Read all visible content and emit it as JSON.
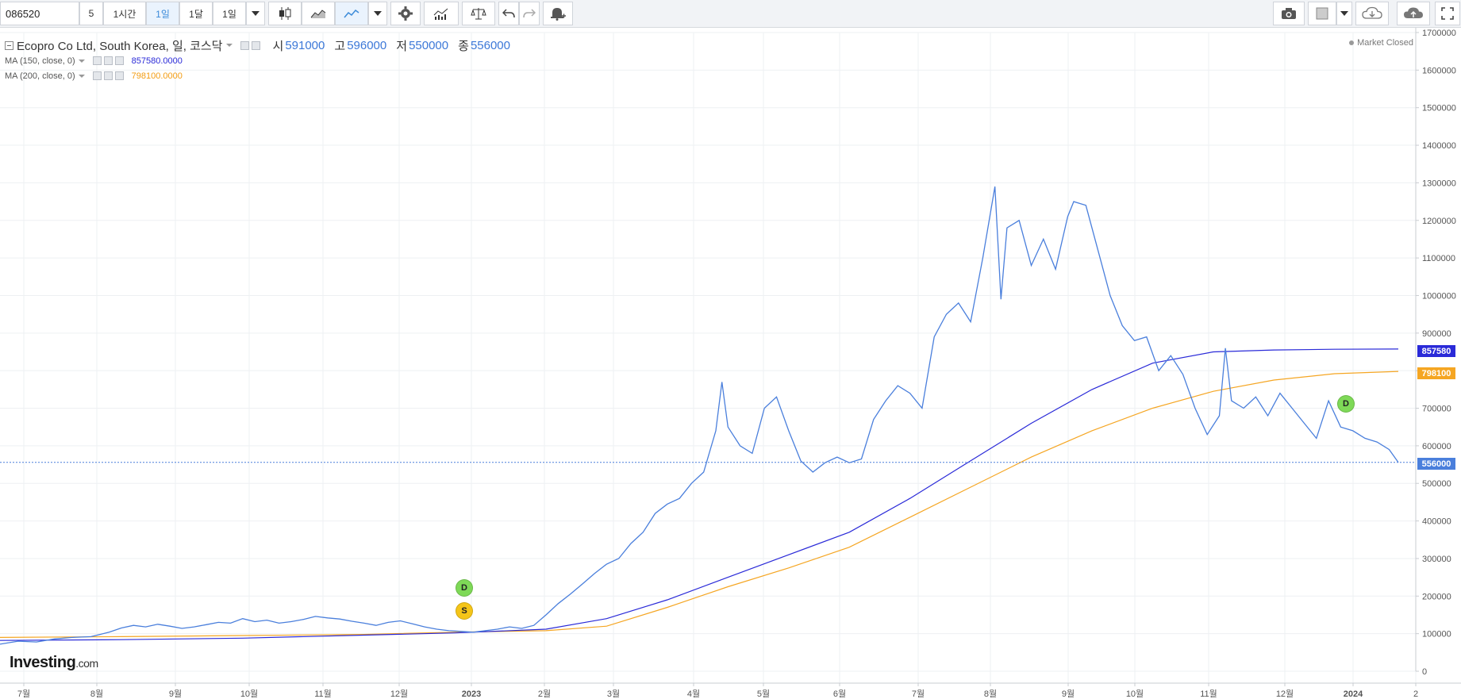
{
  "toolbar": {
    "symbol_value": "086520",
    "interval_buttons": [
      "5",
      "1시간",
      "1일",
      "1달",
      "1일"
    ],
    "active_interval_index": 2
  },
  "legend": {
    "title": "Ecopro Co Ltd, South Korea, 일, 코스닥",
    "open_label": "시",
    "open_value": "591000",
    "high_label": "고",
    "high_value": "596000",
    "low_label": "저",
    "low_value": "550000",
    "close_label": "종",
    "close_value": "556000",
    "ma1_label": "MA (150, close, 0)",
    "ma1_value": "857580.0000",
    "ma2_label": "MA (200, close, 0)",
    "ma2_value": "798100.0000"
  },
  "market_status": "Market Closed",
  "logo": {
    "name": "Investing",
    "suffix": ".com"
  },
  "price_tags": {
    "ma150": "857580",
    "ma200": "798100",
    "last": "556000"
  },
  "badges": {
    "d1": "D",
    "s1": "S",
    "d2": "D"
  },
  "colors": {
    "price_line": "#4a7fdc",
    "ma150": "#2a2ad8",
    "ma200": "#f5a623",
    "last_tag": "#4a7fdc",
    "grid": "#eef0f3",
    "badge_d": "#7ed957",
    "badge_s": "#f5c518"
  },
  "chart_data": {
    "type": "line",
    "y_axis_ticks": [
      "1700000",
      "1600000",
      "1500000",
      "1400000",
      "1300000",
      "1200000",
      "1100000",
      "1000000",
      "900000",
      "800000",
      "700000",
      "600000",
      "500000",
      "400000",
      "300000",
      "200000",
      "100000",
      "0"
    ],
    "ylim": [
      0,
      1700000
    ],
    "x_axis_ticks": [
      "7월",
      "8월",
      "9월",
      "10월",
      "11월",
      "12월",
      "2023",
      "2월",
      "3월",
      "4월",
      "5월",
      "6월",
      "7월",
      "8월",
      "9월",
      "10월",
      "11월",
      "12월",
      "2024",
      "2"
    ],
    "series": [
      {
        "name": "",
        "points": [
          [
            0,
            72000
          ],
          [
            6,
            80000
          ],
          [
            12,
            78000
          ],
          [
            18,
            86000
          ],
          [
            24,
            90000
          ],
          [
            30,
            92000
          ],
          [
            36,
            104000
          ],
          [
            40,
            115000
          ],
          [
            44,
            122000
          ],
          [
            48,
            118000
          ],
          [
            52,
            125000
          ],
          [
            56,
            120000
          ],
          [
            60,
            114000
          ],
          [
            64,
            118000
          ],
          [
            68,
            124000
          ],
          [
            72,
            130000
          ],
          [
            76,
            128000
          ],
          [
            80,
            140000
          ],
          [
            84,
            132000
          ],
          [
            88,
            136000
          ],
          [
            92,
            128000
          ],
          [
            96,
            132000
          ],
          [
            100,
            138000
          ],
          [
            104,
            146000
          ],
          [
            108,
            142000
          ],
          [
            112,
            139000
          ],
          [
            116,
            133000
          ],
          [
            120,
            128000
          ],
          [
            124,
            122000
          ],
          [
            128,
            130000
          ],
          [
            132,
            134000
          ],
          [
            136,
            126000
          ],
          [
            140,
            118000
          ],
          [
            144,
            112000
          ],
          [
            148,
            108000
          ],
          [
            152,
            106000
          ],
          [
            156,
            104000
          ],
          [
            160,
            108000
          ],
          [
            164,
            112000
          ],
          [
            168,
            118000
          ],
          [
            172,
            114000
          ],
          [
            176,
            122000
          ],
          [
            180,
            150000
          ],
          [
            184,
            180000
          ],
          [
            188,
            205000
          ],
          [
            192,
            232000
          ],
          [
            196,
            260000
          ],
          [
            200,
            285000
          ],
          [
            204,
            300000
          ],
          [
            208,
            340000
          ],
          [
            212,
            370000
          ],
          [
            216,
            420000
          ],
          [
            220,
            445000
          ],
          [
            224,
            460000
          ],
          [
            228,
            500000
          ],
          [
            232,
            530000
          ],
          [
            236,
            640000
          ],
          [
            238,
            770000
          ],
          [
            240,
            650000
          ],
          [
            244,
            600000
          ],
          [
            248,
            580000
          ],
          [
            252,
            700000
          ],
          [
            256,
            730000
          ],
          [
            260,
            640000
          ],
          [
            264,
            560000
          ],
          [
            268,
            530000
          ],
          [
            272,
            555000
          ],
          [
            276,
            570000
          ],
          [
            280,
            555000
          ],
          [
            284,
            565000
          ],
          [
            288,
            670000
          ],
          [
            292,
            720000
          ],
          [
            296,
            760000
          ],
          [
            300,
            740000
          ],
          [
            304,
            700000
          ],
          [
            308,
            890000
          ],
          [
            312,
            950000
          ],
          [
            316,
            980000
          ],
          [
            320,
            930000
          ],
          [
            324,
            1100000
          ],
          [
            328,
            1290000
          ],
          [
            330,
            990000
          ],
          [
            332,
            1180000
          ],
          [
            336,
            1200000
          ],
          [
            340,
            1080000
          ],
          [
            344,
            1150000
          ],
          [
            348,
            1070000
          ],
          [
            352,
            1210000
          ],
          [
            354,
            1250000
          ],
          [
            358,
            1240000
          ],
          [
            362,
            1120000
          ],
          [
            366,
            1000000
          ],
          [
            370,
            920000
          ],
          [
            374,
            880000
          ],
          [
            378,
            890000
          ],
          [
            382,
            800000
          ],
          [
            386,
            840000
          ],
          [
            390,
            790000
          ],
          [
            394,
            700000
          ],
          [
            398,
            630000
          ],
          [
            402,
            680000
          ],
          [
            404,
            860000
          ],
          [
            406,
            720000
          ],
          [
            410,
            700000
          ],
          [
            414,
            730000
          ],
          [
            418,
            680000
          ],
          [
            422,
            740000
          ],
          [
            426,
            700000
          ],
          [
            430,
            660000
          ],
          [
            434,
            620000
          ],
          [
            438,
            720000
          ],
          [
            442,
            650000
          ],
          [
            446,
            640000
          ],
          [
            450,
            620000
          ],
          [
            454,
            610000
          ],
          [
            458,
            590000
          ],
          [
            461,
            556000
          ]
        ],
        "color_key": "price_line"
      },
      {
        "name": "",
        "points": [
          [
            0,
            82000
          ],
          [
            40,
            84000
          ],
          [
            80,
            88000
          ],
          [
            120,
            96000
          ],
          [
            150,
            102000
          ],
          [
            180,
            112000
          ],
          [
            200,
            140000
          ],
          [
            220,
            190000
          ],
          [
            240,
            250000
          ],
          [
            260,
            310000
          ],
          [
            280,
            370000
          ],
          [
            300,
            460000
          ],
          [
            320,
            560000
          ],
          [
            340,
            660000
          ],
          [
            360,
            750000
          ],
          [
            380,
            820000
          ],
          [
            400,
            850000
          ],
          [
            420,
            855000
          ],
          [
            440,
            857000
          ],
          [
            461,
            857580
          ]
        ],
        "color_key": "ma150"
      },
      {
        "name": "",
        "points": [
          [
            0,
            90000
          ],
          [
            40,
            92000
          ],
          [
            80,
            95000
          ],
          [
            120,
            98000
          ],
          [
            150,
            104000
          ],
          [
            180,
            108000
          ],
          [
            200,
            120000
          ],
          [
            220,
            170000
          ],
          [
            240,
            225000
          ],
          [
            260,
            275000
          ],
          [
            280,
            330000
          ],
          [
            300,
            410000
          ],
          [
            320,
            490000
          ],
          [
            340,
            570000
          ],
          [
            360,
            640000
          ],
          [
            380,
            700000
          ],
          [
            400,
            745000
          ],
          [
            420,
            775000
          ],
          [
            440,
            792000
          ],
          [
            461,
            798100
          ]
        ],
        "color_key": "ma200"
      }
    ],
    "last_price": 556000
  }
}
